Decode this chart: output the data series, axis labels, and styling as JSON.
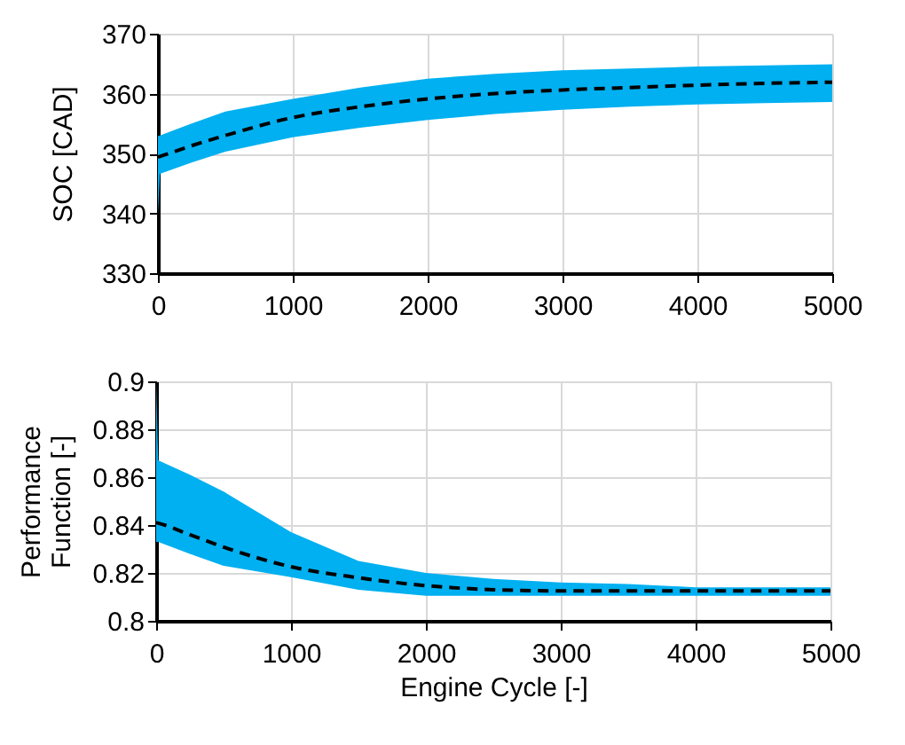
{
  "chart_data": [
    {
      "type": "line",
      "ylabel": "SOC [CAD]",
      "xlim": [
        0,
        5000
      ],
      "xticks": [
        0,
        1000,
        2000,
        3000,
        4000,
        5000
      ],
      "ylim": [
        330,
        370
      ],
      "yticks": [
        330,
        340,
        350,
        360,
        370
      ],
      "grid": true,
      "line_style": "dashed",
      "series": [
        {
          "color": "#000000",
          "x": [
            0,
            15,
            250,
            500,
            1000,
            1500,
            2000,
            2500,
            3000,
            3500,
            4000,
            4500,
            5000
          ],
          "values": [
            349.4,
            349.5,
            351.3,
            353,
            356,
            357.8,
            359.1,
            360,
            360.6,
            361,
            361.4,
            361.7,
            361.9
          ],
          "upper": [
            352.9,
            353,
            355,
            357,
            359.1,
            361,
            362.5,
            363.3,
            363.9,
            364.2,
            364.5,
            364.7,
            364.9
          ],
          "lower": [
            340,
            346.6,
            348.5,
            350.3,
            352.7,
            354.3,
            355.6,
            356.6,
            357.3,
            357.8,
            358.2,
            358.4,
            358.6
          ]
        }
      ]
    },
    {
      "type": "line",
      "ylabel": "Performance Function [-]",
      "xlabel": "Engine Cycle [-]",
      "xlim": [
        0,
        5000
      ],
      "xticks": [
        0,
        1000,
        2000,
        3000,
        4000,
        5000
      ],
      "ylim": [
        0.8,
        0.9
      ],
      "yticks": [
        0.8,
        0.82,
        0.84,
        0.86,
        0.88,
        0.9
      ],
      "grid": true,
      "line_style": "dashed",
      "series": [
        {
          "color": "#000000",
          "x": [
            0,
            15,
            250,
            500,
            1000,
            1500,
            2000,
            2500,
            3000,
            3500,
            4000,
            4500,
            5000
          ],
          "values": [
            0.841,
            0.8408,
            0.836,
            0.8308,
            0.8226,
            0.818,
            0.8147,
            0.813,
            0.8125,
            0.8125,
            0.8125,
            0.8125,
            0.8125
          ],
          "upper": [
            0.9,
            0.867,
            0.861,
            0.854,
            0.837,
            0.825,
            0.82,
            0.8175,
            0.816,
            0.8154,
            0.814,
            0.814,
            0.814
          ],
          "lower": [
            0.833,
            0.833,
            0.828,
            0.823,
            0.8182,
            0.813,
            0.8105,
            0.8105,
            0.8105,
            0.8105,
            0.8105,
            0.8105,
            0.8105
          ]
        }
      ]
    }
  ]
}
